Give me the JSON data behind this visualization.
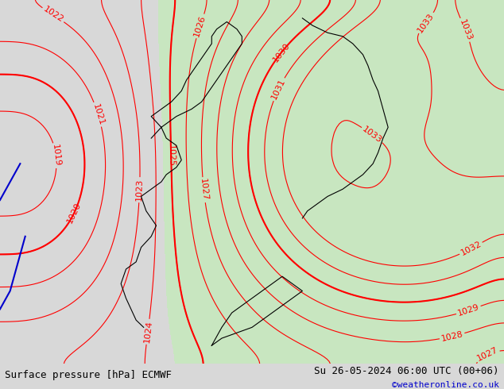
{
  "title_left": "Surface pressure [hPa] ECMWF",
  "title_right": "Su 26-05-2024 06:00 UTC (00+06)",
  "watermark": "©weatheronline.co.uk",
  "bg_color": "#d8d8d8",
  "land_color": "#c8e6c0",
  "sea_color": "#d8d8d8",
  "contour_color": "#ff0000",
  "contour_bold_color": "#cc0000",
  "coast_color": "#000000",
  "blue_line_color": "#0000cc",
  "label_fontsize": 8,
  "title_fontsize": 9,
  "watermark_color": "#0000cc",
  "pressure_min": 1018,
  "pressure_max": 1032,
  "contour_interval": 1,
  "bold_interval": 5,
  "figsize": [
    6.34,
    4.9
  ],
  "dpi": 100,
  "bottom_bar_color": "#ffffff",
  "bottom_bar_height": 0.065
}
